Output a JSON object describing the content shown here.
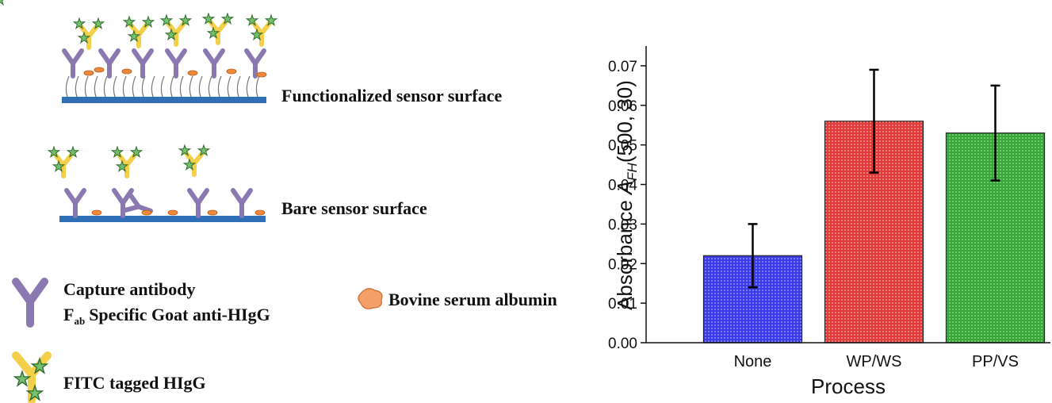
{
  "chart_data": {
    "type": "bar",
    "categories": [
      "None",
      "WP/WS",
      "PP/VS"
    ],
    "values": [
      0.022,
      0.056,
      0.053
    ],
    "errors": [
      0.008,
      0.013,
      0.012
    ],
    "colors": [
      "#3a3ae8",
      "#e03a3a",
      "#35a835"
    ],
    "ylim": [
      0,
      0.075
    ],
    "yticks": [
      {
        "value": 0,
        "label": "0.00"
      },
      0.01,
      0.02,
      0.03,
      0.04,
      0.05,
      0.06,
      0.07
    ],
    "x_label": "Process",
    "y_label": "Absorbance",
    "y_label_symbol": "A",
    "y_label_subscript": "FH",
    "y_label_args": "(500, 30)"
  },
  "diagram": {
    "functionalized_label": "Functionalized sensor surface",
    "bare_label": "Bare sensor surface",
    "legend": {
      "antibody_line1": "Capture antibody",
      "antibody_f": "F",
      "antibody_sub": "ab",
      "antibody_line2": "Specific Goat anti-HIgG",
      "bsa": "Bovine serum albumin",
      "fitc": "FITC tagged HIgG"
    }
  }
}
